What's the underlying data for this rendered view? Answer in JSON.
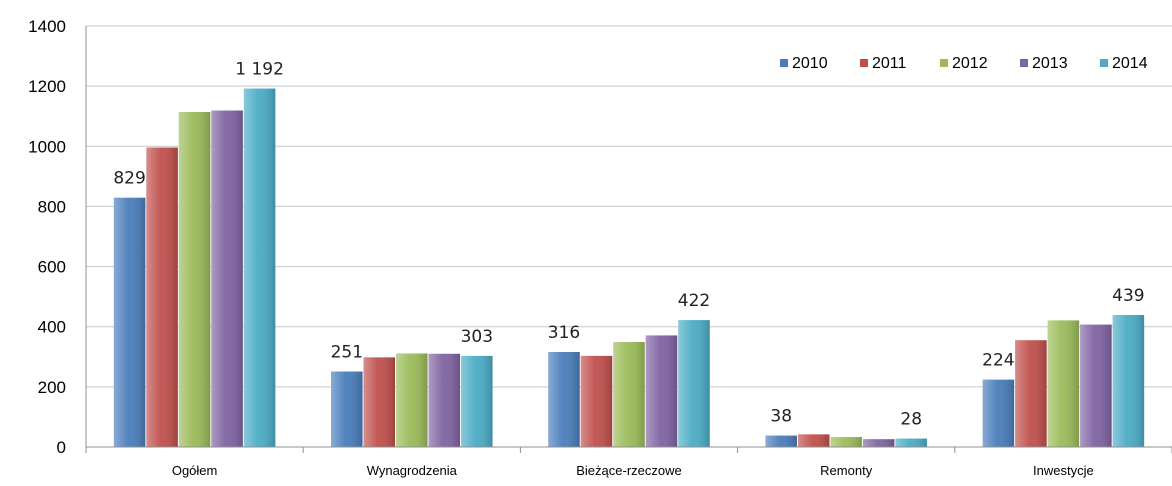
{
  "chart_data": {
    "type": "bar",
    "title": "",
    "xlabel": "",
    "ylabel": "",
    "ylim": [
      0,
      1400
    ],
    "yticks": [
      "0",
      "200",
      "400",
      "600",
      "800",
      "1000",
      "1200",
      "1400"
    ],
    "grid": true,
    "legend_position": "top-right",
    "categories": [
      "Ogółem",
      "Wynagrodzenia",
      "Bieżące-rzeczowe",
      "Remonty",
      "Inwestycje"
    ],
    "series": [
      {
        "name": "2010",
        "color": "#4a7ebb",
        "values": [
          829,
          251,
          316,
          38,
          224
        ]
      },
      {
        "name": "2011",
        "color": "#c0504d",
        "values": [
          996,
          298,
          303,
          42,
          355
        ]
      },
      {
        "name": "2012",
        "color": "#9bbb59",
        "values": [
          1114,
          311,
          349,
          33,
          421
        ]
      },
      {
        "name": "2013",
        "color": "#8064a2",
        "values": [
          1119,
          310,
          371,
          26,
          407
        ]
      },
      {
        "name": "2014",
        "color": "#4bacc6",
        "values": [
          1192,
          303,
          422,
          28,
          439
        ]
      }
    ],
    "data_labels": [
      {
        "category": "Ogółem",
        "series": "2010",
        "text": "829"
      },
      {
        "category": "Ogółem",
        "series": "2014",
        "text": "1 192"
      },
      {
        "category": "Wynagrodzenia",
        "series": "2010",
        "text": "251"
      },
      {
        "category": "Wynagrodzenia",
        "series": "2014",
        "text": "303"
      },
      {
        "category": "Bieżące-rzeczowe",
        "series": "2010",
        "text": "316"
      },
      {
        "category": "Bieżące-rzeczowe",
        "series": "2014",
        "text": "422"
      },
      {
        "category": "Remonty",
        "series": "2010",
        "text": "38"
      },
      {
        "category": "Remonty",
        "series": "2014",
        "text": "28"
      },
      {
        "category": "Inwestycje",
        "series": "2010",
        "text": "224"
      },
      {
        "category": "Inwestycje",
        "series": "2014",
        "text": "439"
      }
    ]
  }
}
